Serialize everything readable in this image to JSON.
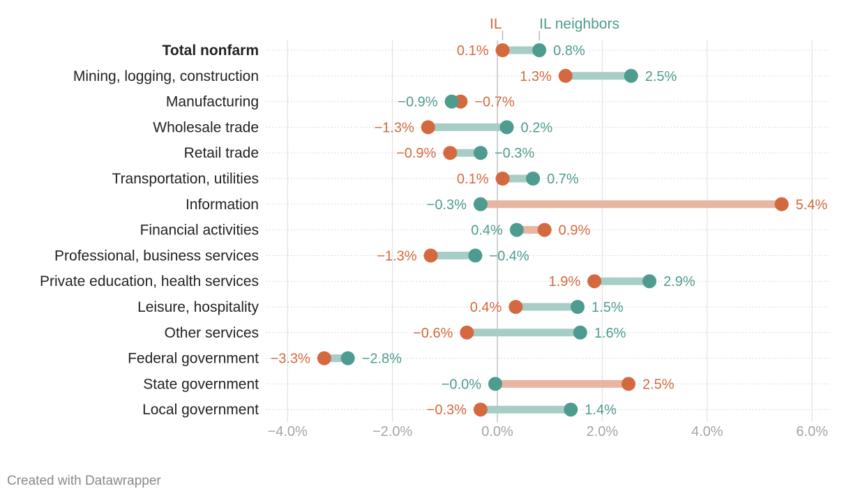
{
  "chart_data": {
    "type": "dot-range",
    "series": [
      {
        "name": "IL",
        "color": "#d4693f"
      },
      {
        "name": "IL neighbors",
        "color": "#4e9b8f"
      }
    ],
    "categories": [
      {
        "label": "Total nonfarm",
        "bold": true,
        "il": 0.1,
        "il_label": "0.1%",
        "nb": 0.8,
        "nb_label": "0.8%"
      },
      {
        "label": "Mining, logging, construction",
        "il": 1.3,
        "il_label": "1.3%",
        "nb": 2.55,
        "nb_label": "2.5%"
      },
      {
        "label": "Manufacturing",
        "il": -0.7,
        "il_label": "−0.7%",
        "nb": -0.87,
        "nb_label": "−0.9%"
      },
      {
        "label": "Wholesale trade",
        "il": -1.32,
        "il_label": "−1.3%",
        "nb": 0.18,
        "nb_label": "0.2%"
      },
      {
        "label": "Retail trade",
        "il": -0.9,
        "il_label": "−0.9%",
        "nb": -0.32,
        "nb_label": "−0.3%"
      },
      {
        "label": "Transportation, utilities",
        "il": 0.1,
        "il_label": "0.1%",
        "nb": 0.68,
        "nb_label": "0.7%"
      },
      {
        "label": "Information",
        "il": 5.42,
        "il_label": "5.4%",
        "nb": -0.32,
        "nb_label": "−0.3%"
      },
      {
        "label": "Financial activities",
        "il": 0.9,
        "il_label": "0.9%",
        "nb": 0.37,
        "nb_label": "0.4%"
      },
      {
        "label": "Professional, business services",
        "il": -1.27,
        "il_label": "−1.3%",
        "nb": -0.42,
        "nb_label": "−0.4%"
      },
      {
        "label": "Private education, health services",
        "il": 1.85,
        "il_label": "1.9%",
        "nb": 2.9,
        "nb_label": "2.9%"
      },
      {
        "label": "Leisure, hospitality",
        "il": 0.35,
        "il_label": "0.4%",
        "nb": 1.53,
        "nb_label": "1.5%"
      },
      {
        "label": "Other services",
        "il": -0.58,
        "il_label": "−0.6%",
        "nb": 1.58,
        "nb_label": "1.6%"
      },
      {
        "label": "Federal government",
        "il": -3.3,
        "il_label": "−3.3%",
        "nb": -2.85,
        "nb_label": "−2.8%"
      },
      {
        "label": "State government",
        "il": 2.5,
        "il_label": "2.5%",
        "nb": -0.04,
        "nb_label": "−0.0%"
      },
      {
        "label": "Local government",
        "il": -0.32,
        "il_label": "−0.3%",
        "nb": 1.4,
        "nb_label": "1.4%"
      }
    ],
    "xlim": [
      -4.0,
      6.0
    ],
    "ticks": [
      {
        "value": -4,
        "label": "−4.0%"
      },
      {
        "value": -2,
        "label": "−2.0%"
      },
      {
        "value": 0,
        "label": "0.0%"
      },
      {
        "value": 2,
        "label": "2.0%"
      },
      {
        "value": 4,
        "label": "4.0%"
      },
      {
        "value": 6,
        "label": "6.0%"
      }
    ],
    "legend_position": "top, above first row"
  },
  "footer": {
    "credit": "Created with Datawrapper"
  }
}
